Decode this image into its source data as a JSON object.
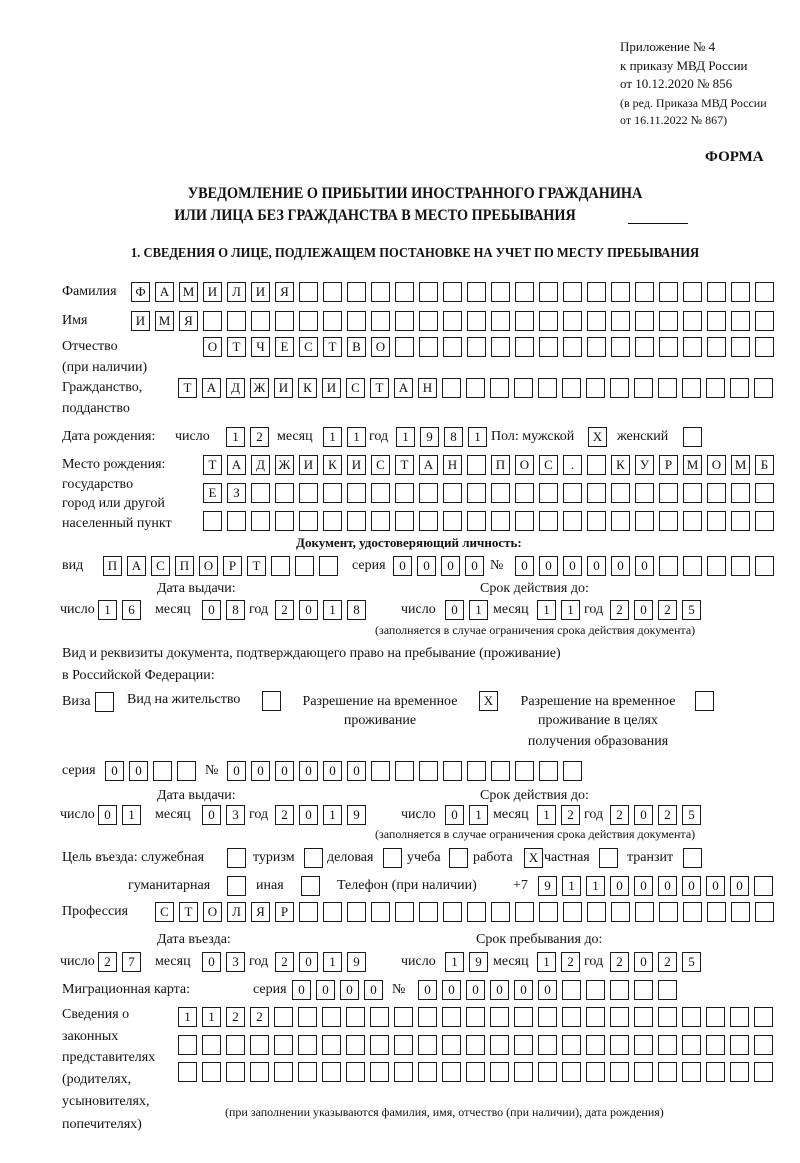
{
  "header": {
    "appendix_line1": "Приложение № 4",
    "appendix_line2": "к приказу МВД России",
    "appendix_line3": "от 10.12.2020 № 856",
    "edition_line1": "(в ред. Приказа МВД России",
    "edition_line2": "от 16.11.2022 № 867)",
    "form_label": "ФОРМА",
    "title_line1": "УВЕДОМЛЕНИЕ О ПРИБЫТИИ ИНОСТРАННОГО ГРАЖДАНИНА",
    "title_line2": "ИЛИ ЛИЦА БЕЗ ГРАЖДАНСТВА В МЕСТО ПРЕБЫВАНИЯ",
    "section1": "1. СВЕДЕНИЯ О ЛИЦЕ, ПОДЛЕЖАЩЕМ ПОСТАНОВКЕ НА УЧЕТ ПО МЕСТУ ПРЕБЫВАНИЯ"
  },
  "labels": {
    "surname": "Фамилия",
    "name": "Имя",
    "patronymic": "Отчество",
    "patronymic_note": "(при наличии)",
    "citizenship1": "Гражданство,",
    "citizenship2": "подданство",
    "birth_date": "Дата рождения:",
    "day": "число",
    "month": "месяц",
    "year": "год",
    "sex_male": "Пол: мужской",
    "sex_female": "женский",
    "birth_place1": "Место рождения:",
    "birth_place2": "государство",
    "birth_place3": "город или другой",
    "birth_place4": "населенный пункт",
    "id_doc_heading": "Документ, удостоверяющий личность:",
    "kind": "вид",
    "series": "серия",
    "number": "№",
    "issue_date": "Дата выдачи:",
    "valid_until": "Срок действия до:",
    "validity_note": "(заполняется в случае ограничения срока действия документа)",
    "stay_doc1": "Вид и реквизиты документа, подтверждающего право на пребывание (проживание)",
    "stay_doc2": "в Российской Федерации:",
    "visa": "Виза",
    "residence_permit": "Вид на жительство",
    "temp_residence1": "Разрешение на временное",
    "temp_residence2": "проживание",
    "temp_edu1": "Разрешение на временное",
    "temp_edu2": "проживание в целях",
    "temp_edu3": "получения образования",
    "purpose": "Цель въезда: служебная",
    "tourism": "туризм",
    "business": "деловая",
    "study": "учеба",
    "work": "работа",
    "private": "частная",
    "transit": "транзит",
    "humanitarian": "гуманитарная",
    "other": "иная",
    "phone": "Телефон (при наличии)",
    "phone_prefix": "+7",
    "profession": "Профессия",
    "entry_date": "Дата въезда:",
    "stay_until": "Срок пребывания до:",
    "migration_card": "Миграционная карта:",
    "reps1": "Сведения о",
    "reps2": "законных",
    "reps3": "представителях",
    "reps4": "(родителях,",
    "reps5": "усыновителях,",
    "reps6": "попечителях)",
    "reps_note": "(при заполнении указываются фамилия, имя, отчество (при наличии), дата рождения)"
  },
  "person": {
    "surname": "ФАМИЛИЯ",
    "name": "ИМЯ",
    "patronymic": "ОТЧЕСТВО",
    "citizenship": "ТАДЖИКИСТАН",
    "birth_day": "12",
    "birth_month": "11",
    "birth_year": "1981",
    "sex_male": "X",
    "sex_female": "",
    "birth_place": [
      "ТАДЖИКИСТАН ПОС. КУРМОМБ",
      "ЕЗ",
      ""
    ],
    "profession": "СТОЛЯР",
    "phone": "911000000"
  },
  "identity_doc": {
    "kind": "ПАСПОРТ",
    "series": "0000",
    "number": "000000",
    "issue_day": "16",
    "issue_month": "08",
    "issue_year": "2018",
    "valid_day": "01",
    "valid_month": "11",
    "valid_year": "2025"
  },
  "stay_doc": {
    "visa": "",
    "residence_permit": "",
    "temp_residence": "X",
    "temp_edu": "",
    "series": "00",
    "number": "000000",
    "issue_day": "01",
    "issue_month": "03",
    "issue_year": "2019",
    "valid_day": "01",
    "valid_month": "12",
    "valid_year": "2025"
  },
  "purpose": {
    "official": "",
    "tourism": "",
    "business": "",
    "study": "",
    "work": "X",
    "private": "",
    "transit": "",
    "humanitarian": "",
    "other": ""
  },
  "entry": {
    "entry_day": "27",
    "entry_month": "03",
    "entry_year": "2019",
    "stay_day": "19",
    "stay_month": "12",
    "stay_year": "2025"
  },
  "migration_card": {
    "series": "0000",
    "number": "000000"
  },
  "representatives": [
    "1122",
    "",
    ""
  ]
}
